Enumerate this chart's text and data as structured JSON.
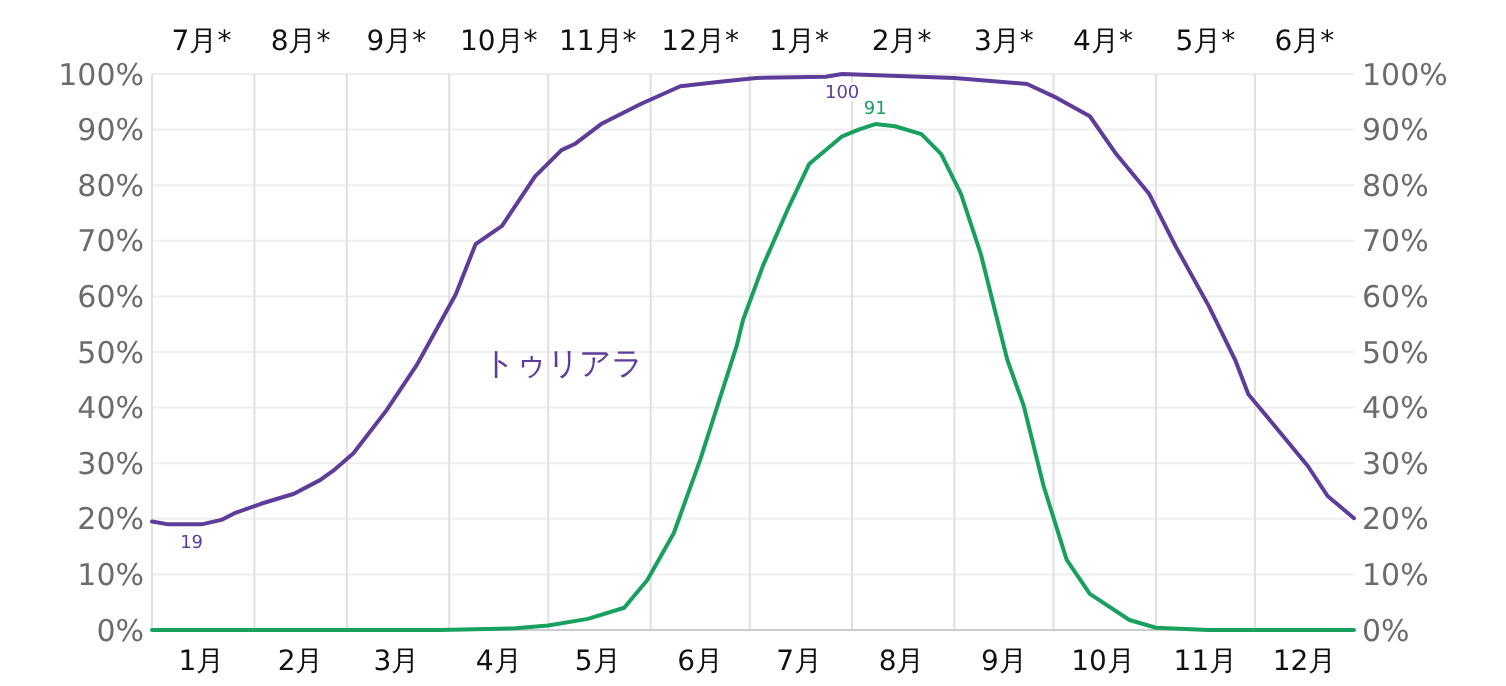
{
  "chart_data": {
    "type": "line",
    "x2ticks": [
      {
        "value": "--01-16",
        "label": "7月*"
      },
      {
        "value": "--02-15",
        "label": "8月*"
      },
      {
        "value": "--03-16",
        "label": "9月*"
      },
      {
        "value": "--04-16",
        "label": "10月*"
      },
      {
        "value": "--05-16",
        "label": "11月*"
      },
      {
        "value": "--06-16",
        "label": "12月*"
      },
      {
        "value": "--07-16",
        "label": "1月*"
      },
      {
        "value": "--08-16",
        "label": "2月*"
      },
      {
        "value": "--09-16",
        "label": "3月*"
      },
      {
        "value": "--10-16",
        "label": "4月*"
      },
      {
        "value": "--11-16",
        "label": "5月*"
      },
      {
        "value": "--12-16",
        "label": "6月*"
      }
    ],
    "x2lim": [
      "--01-01",
      "--12-31"
    ],
    "xlim": [
      "--01-01",
      "--12-31"
    ],
    "xticks": [
      {
        "value": "--01-01",
        "label": null
      },
      {
        "value": "--01-16",
        "label": "1月"
      },
      {
        "value": "--02-01",
        "label": null
      },
      {
        "value": "--02-15",
        "label": "2月"
      },
      {
        "value": "--03-01",
        "label": null
      },
      {
        "value": "--03-16",
        "label": "3月"
      },
      {
        "value": "--04-01",
        "label": null
      },
      {
        "value": "--04-16",
        "label": "4月"
      },
      {
        "value": "--05-01",
        "label": null
      },
      {
        "value": "--05-16",
        "label": "5月"
      },
      {
        "value": "--06-01",
        "label": null
      },
      {
        "value": "--06-16",
        "label": "6月"
      },
      {
        "value": "--07-01",
        "label": null
      },
      {
        "value": "--07-16",
        "label": "7月"
      },
      {
        "value": "--08-01",
        "label": null
      },
      {
        "value": "--08-16",
        "label": "8月"
      },
      {
        "value": "--09-01",
        "label": null
      },
      {
        "value": "--09-16",
        "label": "9月"
      },
      {
        "value": "--10-01",
        "label": null
      },
      {
        "value": "--10-16",
        "label": "10月"
      },
      {
        "value": "--11-01",
        "label": null
      },
      {
        "value": "--11-16",
        "label": "11月"
      },
      {
        "value": "--12-01",
        "label": null
      },
      {
        "value": "--12-16",
        "label": "12月"
      }
    ],
    "ylim": [
      0,
      100
    ],
    "y2lim": [
      0,
      100
    ],
    "yticks": [
      {
        "value": 0,
        "label": "0%"
      },
      {
        "value": 10,
        "label": "10%"
      },
      {
        "value": 20,
        "label": "20%"
      },
      {
        "value": 30,
        "label": "30%"
      },
      {
        "value": 40,
        "label": "40%"
      },
      {
        "value": 50,
        "label": "50%"
      },
      {
        "value": 60,
        "label": "60%"
      },
      {
        "value": 70,
        "label": "70%"
      },
      {
        "value": 80,
        "label": "80%"
      },
      {
        "value": 90,
        "label": "90%"
      },
      {
        "value": 100,
        "label": "100%"
      }
    ],
    "y2ticks": [
      {
        "value": 0,
        "label": "0%"
      },
      {
        "value": 10,
        "label": "10%"
      },
      {
        "value": 20,
        "label": "20%"
      },
      {
        "value": 30,
        "label": "30%"
      },
      {
        "value": 40,
        "label": "40%"
      },
      {
        "value": 50,
        "label": "50%"
      },
      {
        "value": 60,
        "label": "60%"
      },
      {
        "value": 70,
        "label": "70%"
      },
      {
        "value": 80,
        "label": "80%"
      },
      {
        "value": 90,
        "label": "90%"
      },
      {
        "value": 100,
        "label": "100%"
      }
    ],
    "grid": true,
    "marker": "none",
    "line_style": "solid",
    "series": [
      {
        "name": "トゥリアラ",
        "color": "#5e3c99",
        "x": [
          "--01-01",
          "--01-06",
          "--01-16",
          "--01-22",
          "--01-26",
          "--02-03",
          "--02-13",
          "--02-21",
          "--02-25",
          "--03-03",
          "--03-13",
          "--03-22",
          "--03-24",
          "--04-03",
          "--04-09",
          "--04-17",
          "--04-27",
          "--05-05",
          "--05-09",
          "--05-17",
          "--05-29",
          "--06-10",
          "--06-22",
          "--07-03",
          "--07-24",
          "--07-29",
          "--09-01",
          "--09-23",
          "--10-02",
          "--10-12",
          "--10-20",
          "--10-30",
          "--11-07",
          "--11-17",
          "--11-25",
          "--11-29",
          "--12-07",
          "--12-17",
          "--12-23",
          "--12-31"
        ],
        "values": [
          19.5,
          19,
          19,
          19.8,
          21,
          22.7,
          24.5,
          27,
          28.7,
          31.8,
          39.5,
          47.5,
          49.6,
          60.4,
          69.4,
          72.7,
          81.6,
          86.3,
          87.4,
          91,
          94.6,
          97.8,
          98.6,
          99.3,
          99.5,
          100,
          99.3,
          98.2,
          95.7,
          92.4,
          85.6,
          78.4,
          69,
          58.3,
          48.6,
          42.4,
          36.7,
          29.5,
          24.1,
          20.1
        ]
      },
      {
        "color": "#18a05e",
        "x": [
          "--01-01",
          "--03-29",
          "--04-21",
          "--05-01",
          "--05-13",
          "--05-24",
          "--05-31",
          "--06-08",
          "--06-16",
          "--06-27",
          "--06-29",
          "--07-05",
          "--07-13",
          "--07-19",
          "--07-29",
          "--08-03",
          "--08-08",
          "--08-14",
          "--08-22",
          "--08-28",
          "--09-03",
          "--09-09",
          "--09-17",
          "--09-22",
          "--09-28",
          "--10-05",
          "--10-12",
          "--10-24",
          "--11-01",
          "--11-17",
          "--12-31"
        ],
        "values": [
          0,
          0,
          0.3,
          0.8,
          2,
          4,
          9,
          17.4,
          30.6,
          51,
          55.8,
          65.5,
          76.3,
          83.8,
          88.8,
          90,
          91,
          90.6,
          89.2,
          85.6,
          78.4,
          67.6,
          48.6,
          40.3,
          25.9,
          12.6,
          6.5,
          1.8,
          0.4,
          0,
          0
        ]
      }
    ],
    "annotations": [
      {
        "text": "19",
        "x": "--01-13",
        "y": 19
      },
      {
        "text": "100",
        "x": "--07-29",
        "y": 100
      },
      {
        "text": "91",
        "x": "--08-08",
        "y": 91
      }
    ]
  }
}
